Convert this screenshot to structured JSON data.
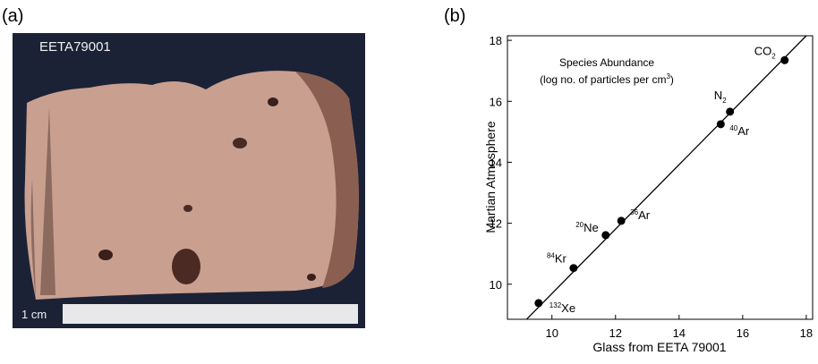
{
  "panel_a": {
    "label": "(a)",
    "specimen_label": "EETA79001",
    "scale_label": "1 cm"
  },
  "chart_data": {
    "type": "scatter",
    "panel_label": "(b)",
    "xlabel": "Glass from EETA 79001",
    "ylabel": "Martian Atmosphere",
    "annotation": {
      "line1": "Species Abundance",
      "line2": "(log no. of particles per cm",
      "line2_sup": "3",
      "line2_end": ")"
    },
    "x": [
      9.58,
      10.68,
      11.69,
      12.18,
      15.31,
      15.6,
      17.32
    ],
    "y": [
      9.38,
      10.53,
      11.61,
      12.08,
      15.25,
      15.66,
      17.35
    ],
    "labels": [
      "Xe",
      "Kr",
      "Ne",
      "Ar",
      "Ar",
      "N",
      "CO"
    ],
    "label_superscripts": [
      "132",
      "84",
      "20",
      "36",
      "40",
      null,
      null
    ],
    "label_subscripts": [
      null,
      null,
      null,
      null,
      null,
      "2",
      "2"
    ],
    "color": "#000000",
    "fit_line": {
      "x": [
        9.21,
        18.0
      ],
      "y": [
        8.86,
        18.15
      ]
    },
    "xlim": [
      8.6,
      18.2
    ],
    "ylim": [
      8.85,
      18.15
    ],
    "xticks": [
      10,
      12,
      14,
      16,
      18
    ],
    "yticks": [
      10,
      12,
      14,
      16,
      18
    ]
  }
}
